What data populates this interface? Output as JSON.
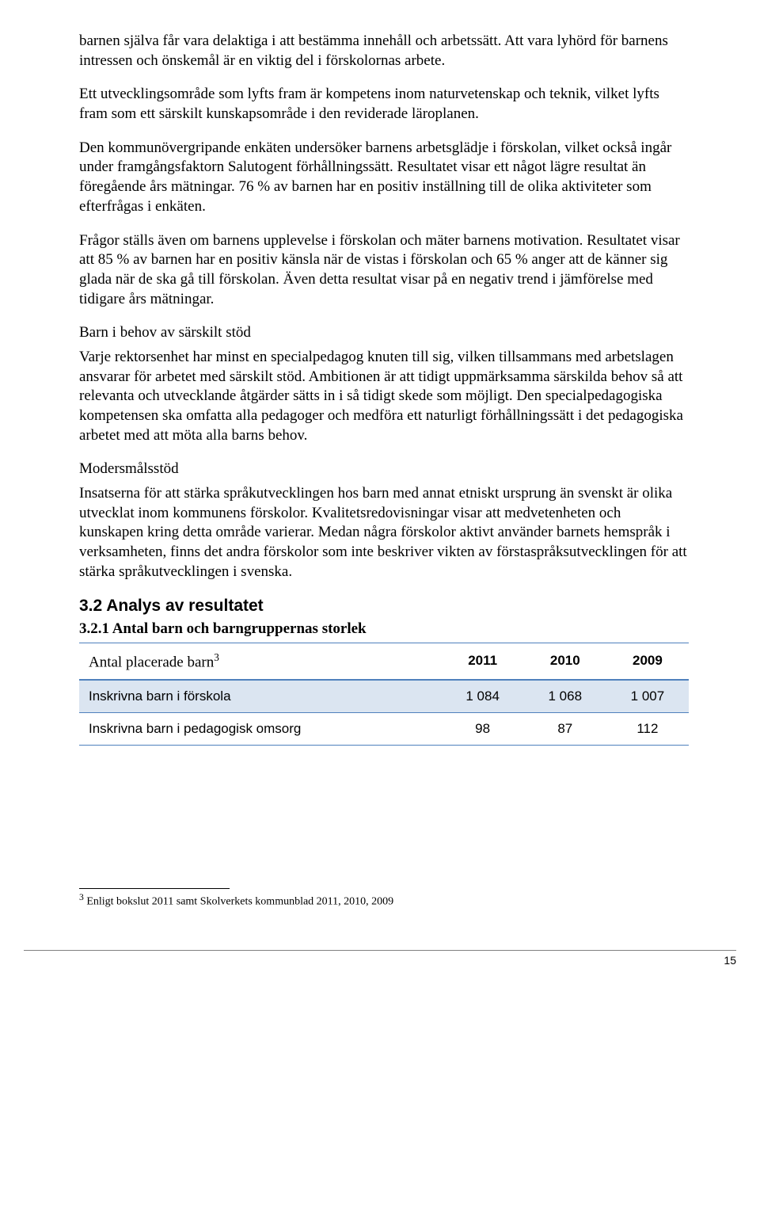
{
  "paragraphs": {
    "p1": "barnen själva får vara delaktiga i att bestämma innehåll och arbetssätt. Att vara lyhörd för barnens intressen och önskemål är en viktig del i förskolornas arbete.",
    "p2": "Ett utvecklingsområde som lyfts fram är kompetens inom naturvetenskap och teknik, vilket lyfts fram som ett särskilt kunskapsområde i den reviderade läroplanen.",
    "p3": "Den kommunövergripande enkäten undersöker barnens arbetsglädje i förskolan, vilket också ingår under framgångsfaktorn Salutogent förhållningssätt. Resultatet visar ett något lägre resultat än föregående års mätningar. 76 % av barnen har en positiv inställning till de olika aktiviteter som efterfrågas i enkäten.",
    "p4": "Frågor ställs även om barnens upplevelse i förskolan och mäter barnens motivation. Resultatet visar att 85 % av barnen har en positiv känsla när de vistas i förskolan och 65 % anger att de känner sig glada när de ska gå till förskolan. Även detta resultat visar på en negativ trend i jämförelse med tidigare års mätningar.",
    "sub1": "Barn i behov av särskilt stöd",
    "p5": "Varje rektorsenhet har minst en specialpedagog knuten till sig, vilken tillsammans med arbetslagen ansvarar för arbetet med särskilt stöd. Ambitionen är att tidigt uppmärksamma särskilda behov så att relevanta och utvecklande åtgärder sätts in i så tidigt skede som möjligt. Den specialpedagogiska kompetensen ska omfatta alla pedagoger och medföra ett naturligt förhållningssätt i det pedagogiska arbetet med att möta alla barns behov.",
    "sub2": "Modersmålsstöd",
    "p6": "Insatserna för att stärka språkutvecklingen hos barn med annat etniskt ursprung än svenskt är olika utvecklat inom kommunens förskolor. Kvalitetsredovisningar visar att medvetenheten och kunskapen kring detta område varierar. Medan några förskolor aktivt använder barnets hemspråk i verksamheten, finns det andra förskolor som inte beskriver vikten av förstaspråksutvecklingen för att stärka språkutvecklingen i svenska."
  },
  "headings": {
    "h2": "3.2   Analys av resultatet",
    "h3": "3.2.1   Antal barn och barngruppernas storlek"
  },
  "table": {
    "header_label": "Antal placerade barn",
    "header_sup": "3",
    "columns": [
      "2011",
      "2010",
      "2009"
    ],
    "rows": [
      {
        "label": "Inskrivna barn i förskola",
        "values": [
          "1 084",
          "1 068",
          "1 007"
        ],
        "highlight": true
      },
      {
        "label": "Inskrivna barn i pedagogisk omsorg",
        "values": [
          "98",
          "87",
          "112"
        ],
        "highlight": false
      }
    ],
    "colors": {
      "border": "#4f81bd",
      "highlight_bg": "#dbe5f1"
    }
  },
  "footnote": {
    "marker": "3",
    "text": " Enligt bokslut 2011 samt Skolverkets kommunblad 2011, 2010, 2009"
  },
  "page_number": "15"
}
